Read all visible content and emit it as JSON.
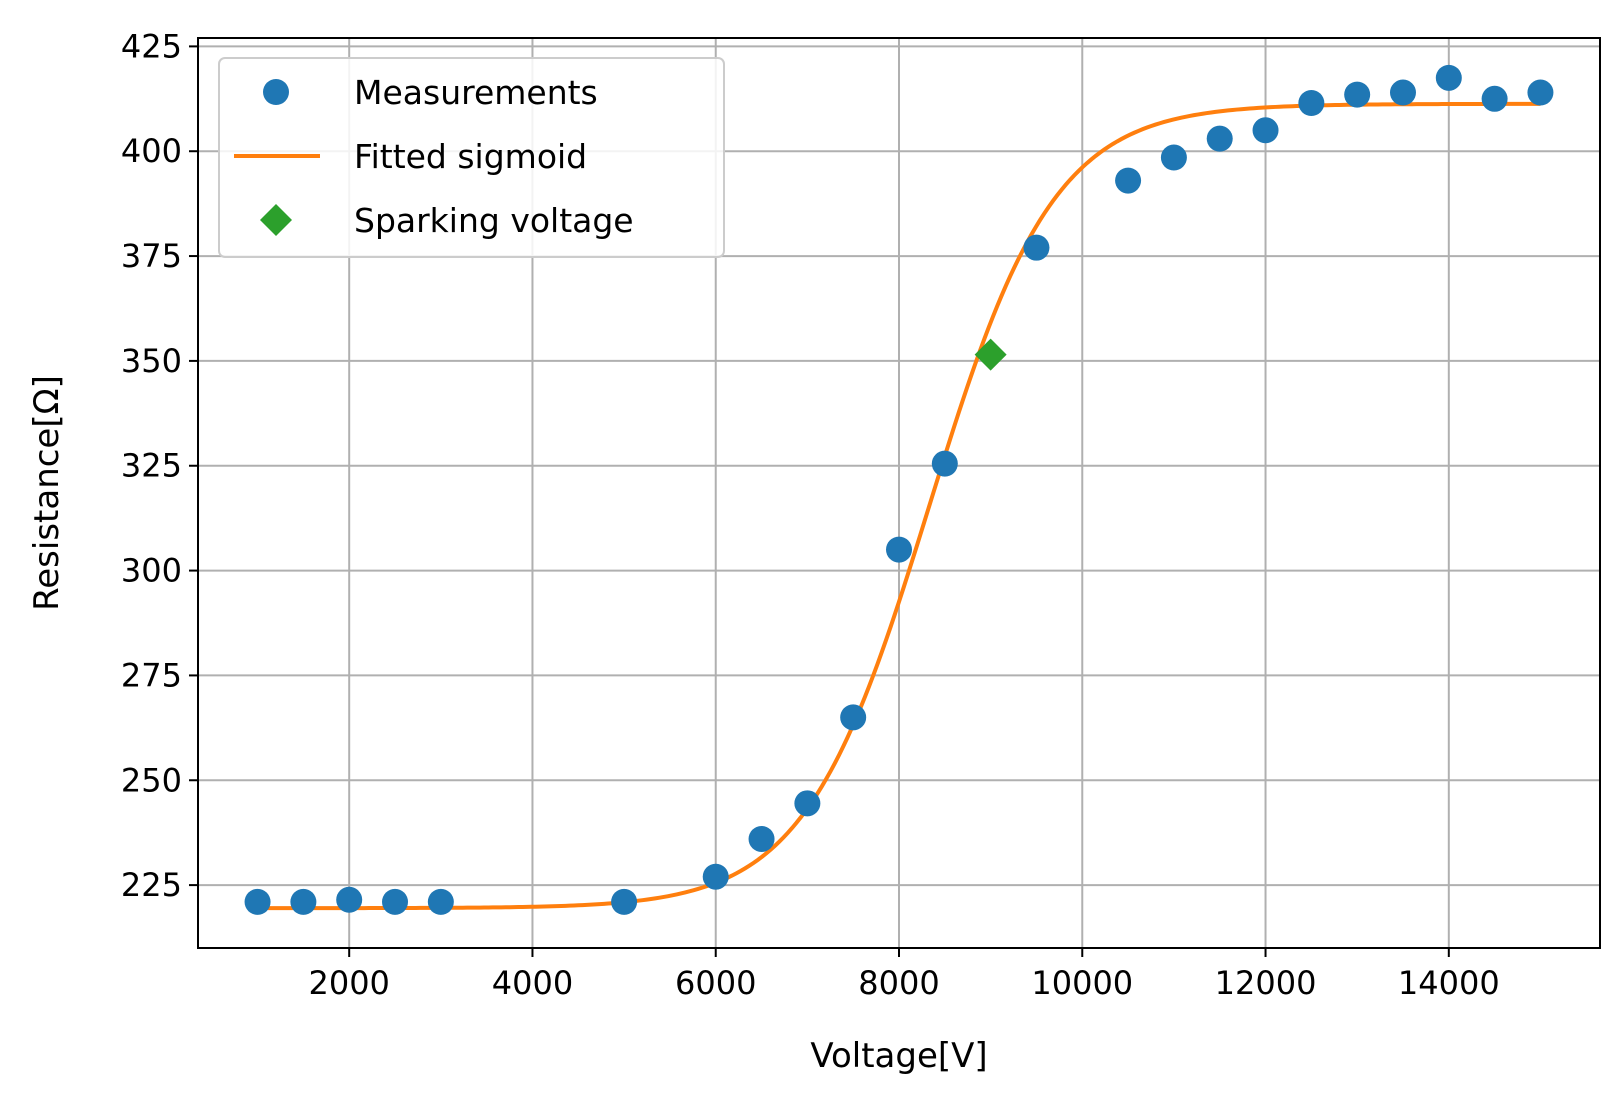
{
  "chart_data": {
    "type": "scatter",
    "xlabel": "Voltage[V]",
    "ylabel": "Resistance[Ω]",
    "xlim": [
      350,
      15650
    ],
    "ylim": [
      210,
      427
    ],
    "xticks": [
      2000,
      4000,
      6000,
      8000,
      10000,
      12000,
      14000
    ],
    "yticks": [
      225,
      250,
      275,
      300,
      325,
      350,
      375,
      400,
      425
    ],
    "grid": true,
    "legend_position": "top-left",
    "series": [
      {
        "name": "Measurements",
        "kind": "markers",
        "marker": "circle",
        "color": "#1f77b4",
        "x": [
          1000,
          1500,
          2000,
          2500,
          3000,
          5000,
          6000,
          6500,
          7000,
          7500,
          8000,
          8500,
          9500,
          10500,
          11000,
          11500,
          12000,
          12500,
          13000,
          13500,
          14000,
          14500,
          15000
        ],
        "y": [
          221,
          221,
          221.5,
          221,
          221,
          221,
          227,
          236,
          244.5,
          265,
          305,
          325.5,
          377,
          393,
          398.5,
          403,
          405,
          411.5,
          413.5,
          414,
          417.5,
          412.5,
          414
        ]
      },
      {
        "name": "Fitted sigmoid",
        "kind": "line",
        "color": "#ff7f0e",
        "params": {
          "lower": 219.5,
          "upper": 411.3,
          "center": 8330,
          "scale": 680
        },
        "x_range": [
          1000,
          15000
        ]
      },
      {
        "name": "Sparking voltage",
        "kind": "markers",
        "marker": "diamond",
        "color": "#2ca02c",
        "x": [
          9000
        ],
        "y": [
          351.5
        ]
      }
    ]
  }
}
